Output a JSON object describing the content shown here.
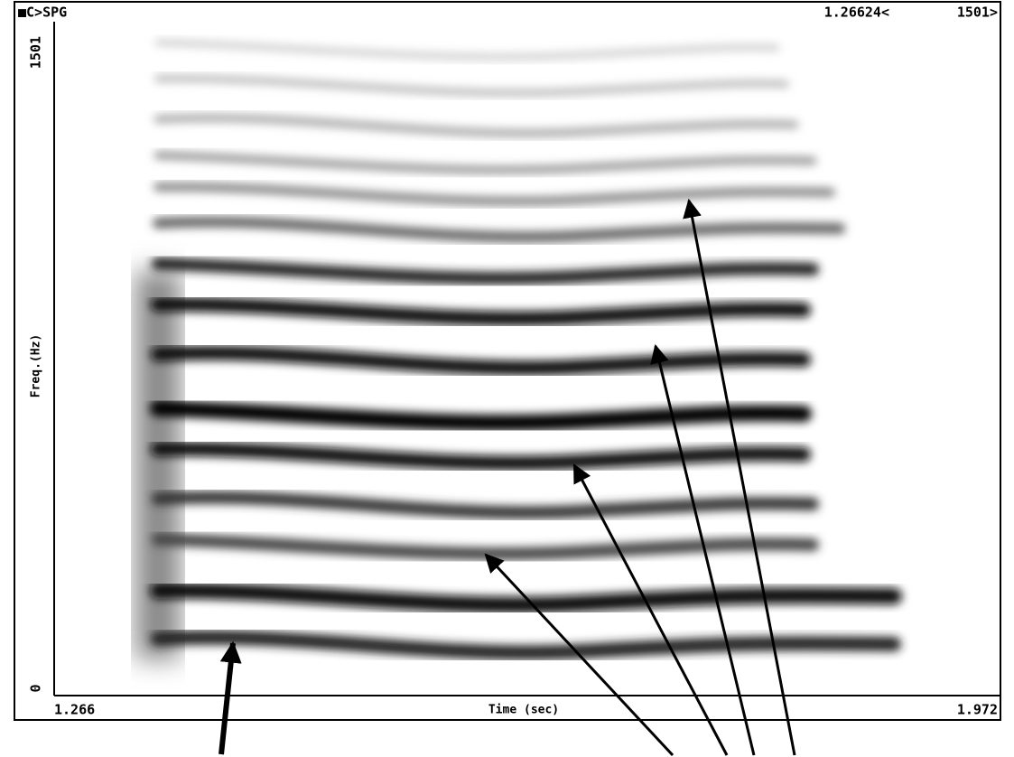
{
  "header": {
    "left": "■C>SPG",
    "time": "1.26624<",
    "bins": "1501>"
  },
  "axes": {
    "y_max": "1501",
    "y_label": "Freq.(Hz)",
    "y_min": "0",
    "x_min": "1.266",
    "x_label": "Time (sec)",
    "x_max": "1.972"
  }
}
